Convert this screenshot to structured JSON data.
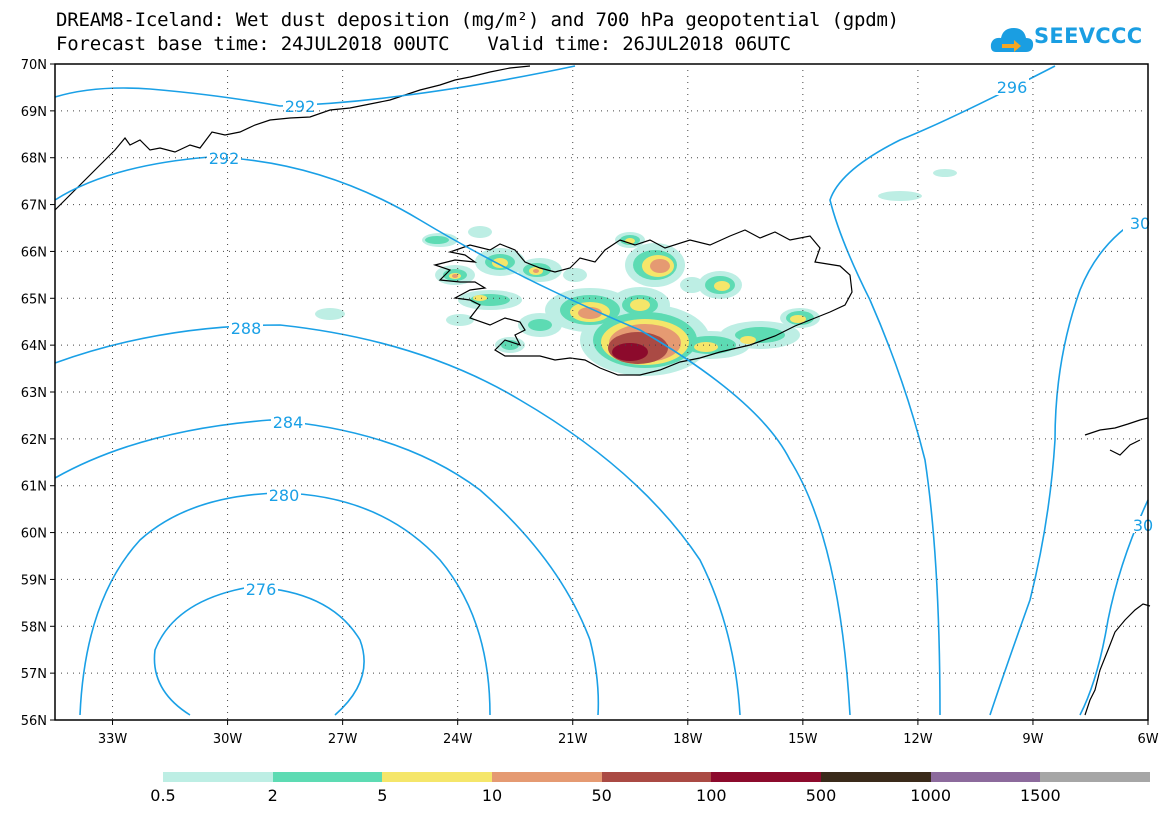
{
  "title": {
    "line1": "DREAM8-Iceland: Wet dust deposition (mg/m²) and 700 hPa geopotential (gpdm)",
    "forecast_base": "Forecast base time: 24JUL2018 00UTC",
    "valid_time": "Valid time: 26JUL2018 06UTC"
  },
  "logo": {
    "text": "SEEVCCC",
    "icon": "cloud-arrow-icon",
    "color": "#1a9ee2"
  },
  "map": {
    "lat_range": [
      56,
      70
    ],
    "lon_range": [
      -34.5,
      -6
    ],
    "lat_labels": [
      "70N",
      "69N",
      "68N",
      "67N",
      "66N",
      "65N",
      "64N",
      "63N",
      "62N",
      "61N",
      "60N",
      "59N",
      "58N",
      "57N",
      "56N"
    ],
    "lon_labels": [
      "33W",
      "30W",
      "27W",
      "24W",
      "21W",
      "18W",
      "15W",
      "12W",
      "9W",
      "6W"
    ],
    "contour_color": "#1aa0e6",
    "contour_labels": [
      "292",
      "292",
      "296",
      "288",
      "284",
      "280",
      "276",
      "30",
      "30"
    ]
  },
  "colorbar": {
    "colors": [
      "#bdeee4",
      "#5ddbb3",
      "#f5e66a",
      "#e59a72",
      "#aa4a44",
      "#8c0a2c",
      "#3a2a1a",
      "#8c6a9c",
      "#a6a6a6"
    ],
    "labels": [
      "0.5",
      "2",
      "5",
      "10",
      "50",
      "100",
      "500",
      "1000",
      "1500"
    ]
  }
}
